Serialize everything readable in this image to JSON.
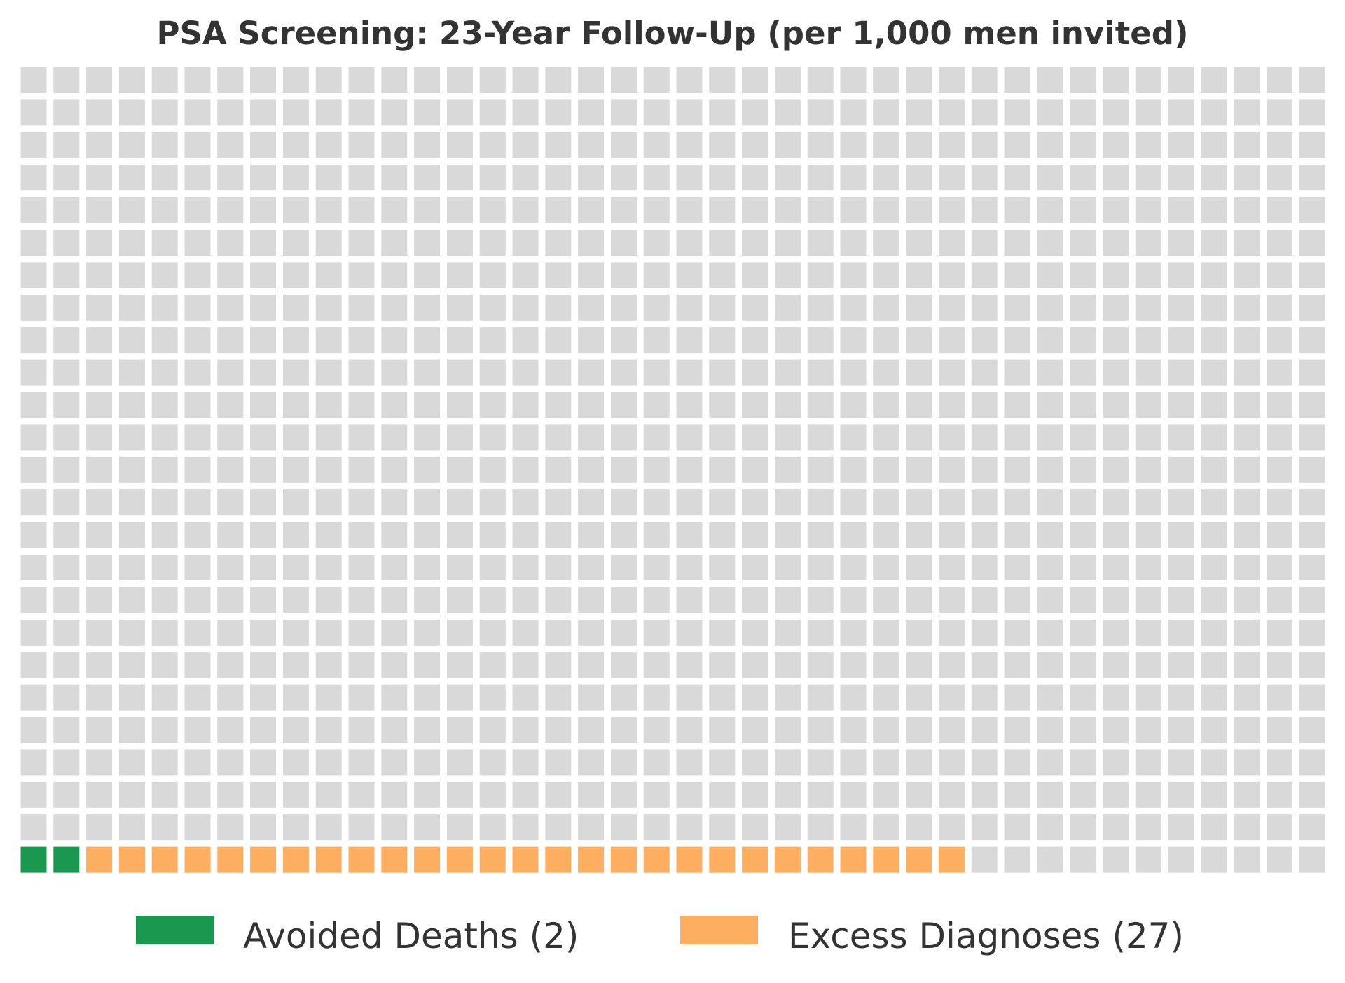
{
  "chart_data": {
    "type": "waffle",
    "title": "PSA Screening: 23-Year Follow-Up (per 1,000 men invited)",
    "total": 1000,
    "columns": 40,
    "rows": 25,
    "fill_order": "bottom row first, left to right",
    "background_color": "#d9d9d9",
    "series": [
      {
        "name": "Avoided Deaths (2)",
        "value": 2,
        "color": "#1a9850"
      },
      {
        "name": "Excess Diagnoses (27)",
        "value": 27,
        "color": "#fdae61"
      }
    ],
    "legend_position": "bottom"
  }
}
